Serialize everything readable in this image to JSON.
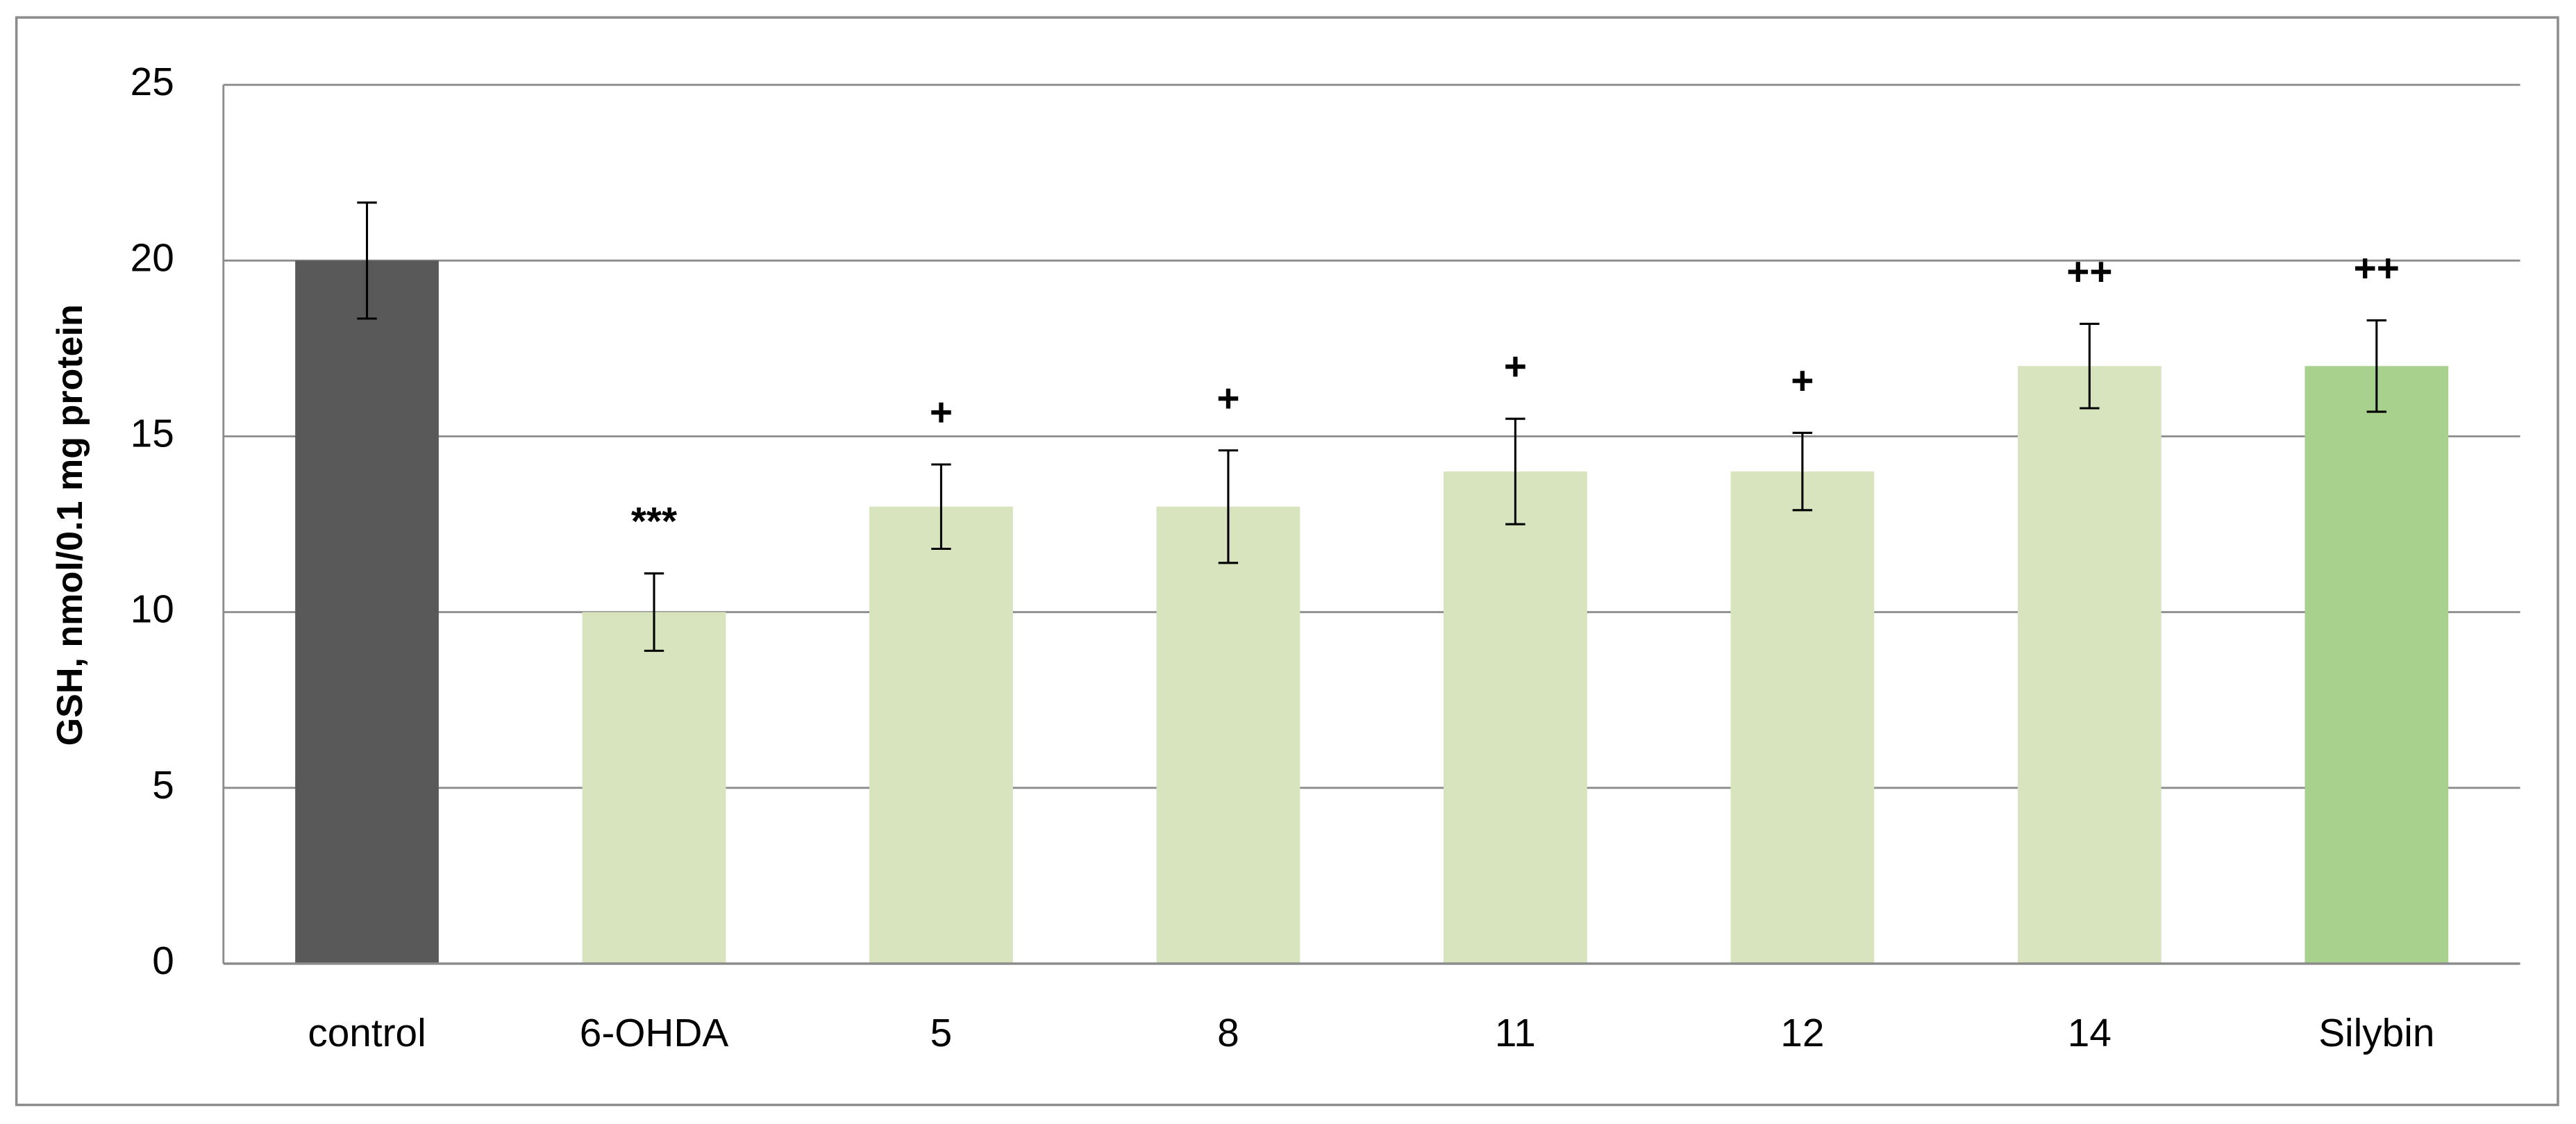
{
  "chart_data": {
    "type": "bar",
    "y_label": "GSH, nmol/0.1 mg protein",
    "categories": [
      "control",
      "6-OHDA",
      "5",
      "8",
      "11",
      "12",
      "14",
      "Silybin"
    ],
    "values": [
      20,
      10,
      13,
      13,
      14,
      14,
      17,
      17
    ],
    "errors": [
      1.65,
      1.1,
      1.2,
      1.6,
      1.5,
      1.1,
      1.2,
      1.3
    ],
    "annotations": [
      null,
      "***",
      "+",
      "+",
      "+",
      "+",
      "++",
      "++"
    ],
    "colors": [
      "#595959",
      "#d7e4bd",
      "#d7e4bd",
      "#d7e4bd",
      "#d7e4bd",
      "#d7e4bd",
      "#d7e4bd",
      "#a9d18e"
    ],
    "ylim": [
      0,
      25
    ],
    "yticks": [
      0,
      5,
      10,
      15,
      20,
      25
    ],
    "grid": true
  }
}
